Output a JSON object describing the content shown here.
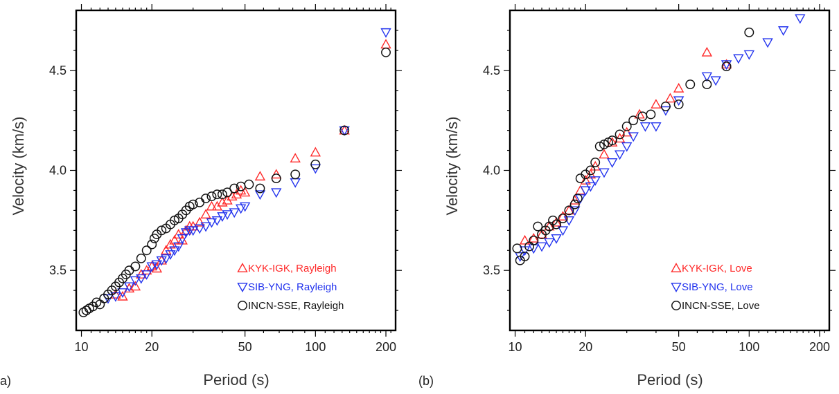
{
  "chart_data": [
    {
      "type": "scatter",
      "panel_label": "(a)",
      "xlabel": "Period (s)",
      "ylabel": "Velocity (km/s)",
      "x_scale": "log",
      "xlim": [
        9.5,
        220
      ],
      "ylim": [
        3.2,
        4.8
      ],
      "x_ticks": [
        {
          "value": 10,
          "label": "10"
        },
        {
          "value": 20,
          "label": "20"
        },
        {
          "value": 50,
          "label": "50"
        },
        {
          "value": 100,
          "label": "100"
        },
        {
          "value": 200,
          "label": "200"
        }
      ],
      "y_ticks": [
        {
          "value": 3.5,
          "label": "3.5"
        },
        {
          "value": 4.0,
          "label": "4.0"
        },
        {
          "value": 4.5,
          "label": "4.5"
        }
      ],
      "legend_position": "bottom-right",
      "series": [
        {
          "name": "KYK-IGK, Rayleigh",
          "marker": "triangle-up",
          "color": "#ff2a2a",
          "points": [
            [
              14,
              3.38
            ],
            [
              15,
              3.37
            ],
            [
              16,
              3.41
            ],
            [
              17,
              3.42
            ],
            [
              18,
              3.48
            ],
            [
              19,
              3.5
            ],
            [
              20,
              3.52
            ],
            [
              21,
              3.51
            ],
            [
              22,
              3.55
            ],
            [
              23,
              3.6
            ],
            [
              24,
              3.63
            ],
            [
              25,
              3.65
            ],
            [
              26,
              3.68
            ],
            [
              27,
              3.65
            ],
            [
              28,
              3.7
            ],
            [
              29,
              3.72
            ],
            [
              30,
              3.72
            ],
            [
              32,
              3.74
            ],
            [
              34,
              3.78
            ],
            [
              36,
              3.82
            ],
            [
              38,
              3.82
            ],
            [
              40,
              3.84
            ],
            [
              42,
              3.85
            ],
            [
              44,
              3.87
            ],
            [
              46,
              3.88
            ],
            [
              48,
              3.9
            ],
            [
              50,
              3.89
            ],
            [
              58,
              3.97
            ],
            [
              68,
              3.98
            ],
            [
              82,
              4.06
            ],
            [
              100,
              4.09
            ],
            [
              133,
              4.2
            ],
            [
              200,
              4.63
            ]
          ]
        },
        {
          "name": "SIB-YNG, Rayleigh",
          "marker": "triangle-down",
          "color": "#2233ee",
          "points": [
            [
              13,
              3.36
            ],
            [
              14,
              3.37
            ],
            [
              15,
              3.39
            ],
            [
              16,
              3.42
            ],
            [
              17,
              3.45
            ],
            [
              18,
              3.46
            ],
            [
              19,
              3.48
            ],
            [
              20,
              3.52
            ],
            [
              21,
              3.53
            ],
            [
              22,
              3.55
            ],
            [
              23,
              3.56
            ],
            [
              24,
              3.58
            ],
            [
              25,
              3.6
            ],
            [
              26,
              3.62
            ],
            [
              27,
              3.66
            ],
            [
              28,
              3.69
            ],
            [
              29,
              3.7
            ],
            [
              30,
              3.7
            ],
            [
              32,
              3.71
            ],
            [
              34,
              3.72
            ],
            [
              36,
              3.74
            ],
            [
              38,
              3.75
            ],
            [
              40,
              3.77
            ],
            [
              42,
              3.78
            ],
            [
              45,
              3.79
            ],
            [
              48,
              3.81
            ],
            [
              50,
              3.82
            ],
            [
              58,
              3.88
            ],
            [
              68,
              3.89
            ],
            [
              82,
              3.94
            ],
            [
              100,
              4.01
            ],
            [
              133,
              4.2
            ],
            [
              200,
              4.69
            ]
          ]
        },
        {
          "name": "INCN-SSE, Rayleigh",
          "marker": "circle",
          "color": "#111111",
          "points": [
            [
              10.2,
              3.29
            ],
            [
              10.5,
              3.3
            ],
            [
              10.8,
              3.31
            ],
            [
              11.2,
              3.32
            ],
            [
              11.6,
              3.34
            ],
            [
              12,
              3.33
            ],
            [
              12.5,
              3.36
            ],
            [
              13,
              3.38
            ],
            [
              13.5,
              3.4
            ],
            [
              14,
              3.42
            ],
            [
              14.5,
              3.44
            ],
            [
              15,
              3.46
            ],
            [
              15.5,
              3.48
            ],
            [
              16,
              3.5
            ],
            [
              17,
              3.52
            ],
            [
              18,
              3.56
            ],
            [
              19,
              3.6
            ],
            [
              20,
              3.63
            ],
            [
              20.5,
              3.66
            ],
            [
              21,
              3.68
            ],
            [
              22,
              3.7
            ],
            [
              23,
              3.71
            ],
            [
              24,
              3.73
            ],
            [
              25,
              3.75
            ],
            [
              26,
              3.76
            ],
            [
              27,
              3.78
            ],
            [
              28,
              3.8
            ],
            [
              29,
              3.82
            ],
            [
              30,
              3.83
            ],
            [
              32,
              3.84
            ],
            [
              34,
              3.86
            ],
            [
              36,
              3.87
            ],
            [
              38,
              3.88
            ],
            [
              40,
              3.88
            ],
            [
              42,
              3.89
            ],
            [
              45,
              3.91
            ],
            [
              48,
              3.92
            ],
            [
              52,
              3.93
            ],
            [
              58,
              3.91
            ],
            [
              68,
              3.96
            ],
            [
              82,
              3.98
            ],
            [
              100,
              4.03
            ],
            [
              133,
              4.2
            ],
            [
              200,
              4.59
            ]
          ]
        }
      ]
    },
    {
      "type": "scatter",
      "panel_label": "(b)",
      "xlabel": "Period (s)",
      "ylabel": "Velocity (km/s)",
      "x_scale": "log",
      "xlim": [
        9.5,
        220
      ],
      "ylim": [
        3.2,
        4.8
      ],
      "x_ticks": [
        {
          "value": 10,
          "label": "10"
        },
        {
          "value": 20,
          "label": "20"
        },
        {
          "value": 50,
          "label": "50"
        },
        {
          "value": 100,
          "label": "100"
        },
        {
          "value": 200,
          "label": "200"
        }
      ],
      "y_ticks": [
        {
          "value": 3.5,
          "label": "3.5"
        },
        {
          "value": 4.0,
          "label": "4.0"
        },
        {
          "value": 4.5,
          "label": "4.5"
        }
      ],
      "legend_position": "bottom-right",
      "series": [
        {
          "name": "KYK-IGK, Love",
          "marker": "triangle-up",
          "color": "#ff2a2a",
          "points": [
            [
              11,
              3.65
            ],
            [
              12,
              3.66
            ],
            [
              13,
              3.68
            ],
            [
              14,
              3.72
            ],
            [
              15,
              3.74
            ],
            [
              16,
              3.77
            ],
            [
              17,
              3.8
            ],
            [
              18,
              3.85
            ],
            [
              19,
              3.9
            ],
            [
              20,
              3.95
            ],
            [
              21,
              3.98
            ],
            [
              22,
              4.02
            ],
            [
              24,
              4.08
            ],
            [
              26,
              4.14
            ],
            [
              28,
              4.16
            ],
            [
              30,
              4.19
            ],
            [
              34,
              4.28
            ],
            [
              40,
              4.33
            ],
            [
              46,
              4.36
            ],
            [
              50,
              4.41
            ],
            [
              66,
              4.59
            ],
            [
              80,
              4.53
            ]
          ]
        },
        {
          "name": "SIB-YNG, Love",
          "marker": "triangle-down",
          "color": "#2233ee",
          "points": [
            [
              10.5,
              3.57
            ],
            [
              11,
              3.6
            ],
            [
              12,
              3.61
            ],
            [
              13,
              3.62
            ],
            [
              14,
              3.64
            ],
            [
              15,
              3.66
            ],
            [
              16,
              3.7
            ],
            [
              17,
              3.75
            ],
            [
              18,
              3.8
            ],
            [
              19,
              3.86
            ],
            [
              20,
              3.9
            ],
            [
              21,
              3.92
            ],
            [
              22,
              3.95
            ],
            [
              24,
              3.99
            ],
            [
              26,
              4.04
            ],
            [
              28,
              4.08
            ],
            [
              30,
              4.12
            ],
            [
              32,
              4.17
            ],
            [
              36,
              4.22
            ],
            [
              40,
              4.22
            ],
            [
              44,
              4.3
            ],
            [
              50,
              4.35
            ],
            [
              66,
              4.47
            ],
            [
              72,
              4.45
            ],
            [
              80,
              4.53
            ],
            [
              90,
              4.56
            ],
            [
              100,
              4.58
            ],
            [
              120,
              4.64
            ],
            [
              140,
              4.7
            ],
            [
              165,
              4.76
            ]
          ]
        },
        {
          "name": "INCN-SSE, Love",
          "marker": "circle",
          "color": "#111111",
          "points": [
            [
              10.2,
              3.61
            ],
            [
              10.5,
              3.55
            ],
            [
              11,
              3.57
            ],
            [
              11.5,
              3.62
            ],
            [
              12,
              3.65
            ],
            [
              12.5,
              3.72
            ],
            [
              13,
              3.68
            ],
            [
              13.5,
              3.7
            ],
            [
              14,
              3.72
            ],
            [
              14.5,
              3.75
            ],
            [
              15,
              3.73
            ],
            [
              16,
              3.76
            ],
            [
              17,
              3.8
            ],
            [
              18,
              3.83
            ],
            [
              18.5,
              3.86
            ],
            [
              19,
              3.96
            ],
            [
              20,
              3.98
            ],
            [
              21,
              4.0
            ],
            [
              22,
              4.04
            ],
            [
              23,
              4.12
            ],
            [
              24,
              4.13
            ],
            [
              25,
              4.14
            ],
            [
              26,
              4.15
            ],
            [
              28,
              4.18
            ],
            [
              30,
              4.22
            ],
            [
              32,
              4.25
            ],
            [
              35,
              4.27
            ],
            [
              38,
              4.28
            ],
            [
              44,
              4.32
            ],
            [
              50,
              4.33
            ],
            [
              56,
              4.43
            ],
            [
              66,
              4.43
            ],
            [
              80,
              4.52
            ],
            [
              100,
              4.69
            ]
          ]
        }
      ]
    }
  ]
}
